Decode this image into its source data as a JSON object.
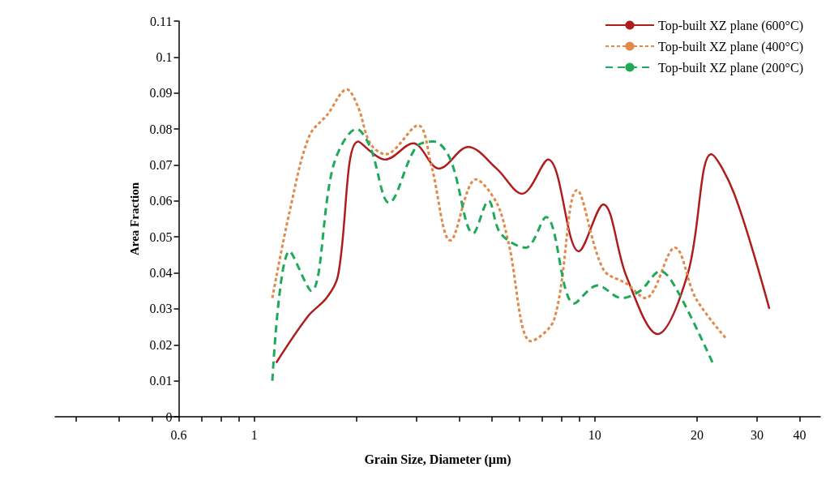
{
  "chart_data": {
    "type": "line",
    "xlabel": "Grain Size, Diameter (μm)",
    "ylabel": "Area Fraction",
    "log": "x",
    "xlim": [
      0.26,
      46
    ],
    "xticks": [
      {
        "value": 0.3,
        "label": null
      },
      {
        "value": 0.4,
        "label": null
      },
      {
        "value": 0.5,
        "label": null
      },
      0.6,
      {
        "value": 0.7,
        "label": null
      },
      {
        "value": 0.8,
        "label": null
      },
      {
        "value": 0.9,
        "label": null
      },
      1,
      {
        "value": 2,
        "label": null
      },
      {
        "value": 3,
        "label": null
      },
      {
        "value": 4,
        "label": null
      },
      {
        "value": 5,
        "label": null
      },
      {
        "value": 6,
        "label": null
      },
      {
        "value": 7,
        "label": null
      },
      {
        "value": 8,
        "label": null
      },
      {
        "value": 9,
        "label": null
      },
      10,
      20,
      30,
      40
    ],
    "ylim": [
      0,
      0.11
    ],
    "yticks": [
      0,
      0.01,
      0.02,
      0.03,
      0.04,
      0.05,
      0.06,
      0.07,
      0.08,
      0.09,
      0.1,
      0.11
    ],
    "grid": false,
    "legend": "top right",
    "marker": "none",
    "series": [
      {
        "name": "Top-built XZ plane (600°C)",
        "color": "#b01c1c",
        "line_style": "solid",
        "x": [
          1.16,
          1.44,
          1.63,
          1.76,
          2.02,
          2.43,
          2.93,
          3.49,
          4.25,
          5.15,
          6.12,
          7.3,
          8.98,
          10.6,
          12.4,
          15.3,
          18.8,
          22,
          25.7,
          32.6
        ],
        "values": [
          0.015,
          0.028,
          0.033,
          0.039,
          0.0765,
          0.0715,
          0.076,
          0.069,
          0.075,
          0.069,
          0.062,
          0.0715,
          0.046,
          0.059,
          0.039,
          0.023,
          0.04,
          0.073,
          0.062,
          0.03
        ]
      },
      {
        "name": "Top-built XZ plane (400°C)",
        "color": "#e0894a",
        "line_style": "dotted",
        "x": [
          1.13,
          1.27,
          1.45,
          1.64,
          1.87,
          2.02,
          2.19,
          2.43,
          3.03,
          3.31,
          3.77,
          4.48,
          5.15,
          5.58,
          6.5,
          7.6,
          8.88,
          10.6,
          12.4,
          14.1,
          17.2,
          19.8,
          24.2
        ],
        "values": [
          0.033,
          0.057,
          0.078,
          0.084,
          0.091,
          0.086,
          0.076,
          0.073,
          0.081,
          0.07,
          0.049,
          0.066,
          0.0595,
          0.0485,
          0.021,
          0.027,
          0.063,
          0.041,
          0.037,
          0.033,
          0.047,
          0.033,
          0.022
        ]
      },
      {
        "name": "Top-built XZ plane (200°C)",
        "color": "#1faa59",
        "line_style": "dashed",
        "x": [
          1.13,
          1.27,
          1.47,
          1.71,
          2.0,
          2.19,
          2.49,
          2.99,
          3.37,
          3.77,
          4.4,
          4.88,
          5.29,
          6.27,
          7.2,
          8.7,
          10.2,
          12.0,
          13.6,
          15.6,
          17.5,
          22.2
        ],
        "values": [
          0.01,
          0.046,
          0.035,
          0.07,
          0.08,
          0.075,
          0.0595,
          0.075,
          0.0765,
          0.0715,
          0.051,
          0.06,
          0.051,
          0.047,
          0.0555,
          0.0315,
          0.0365,
          0.033,
          0.035,
          0.0405,
          0.035,
          0.015
        ]
      }
    ]
  }
}
